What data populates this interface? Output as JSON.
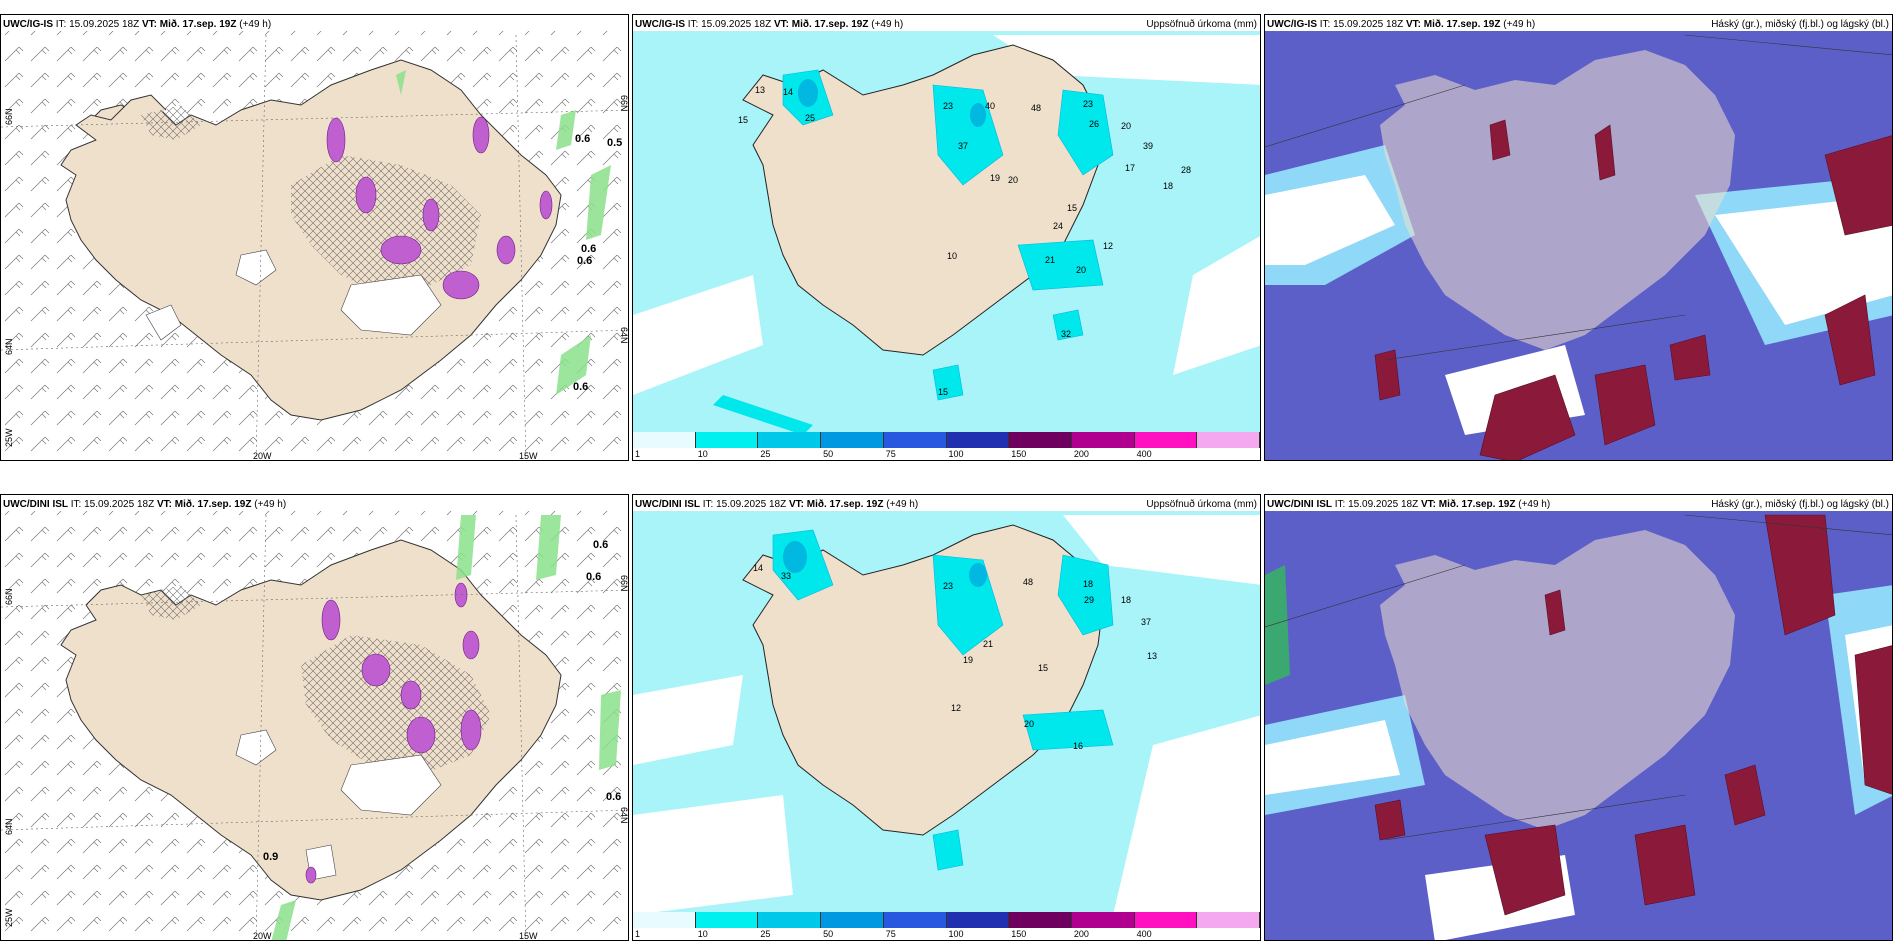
{
  "rows": [
    {
      "model": "UWC/IG-IS",
      "it": "IT: 15.09.2025 18Z",
      "vt_label": "VT:",
      "vt": "Mið. 17.sep. 19Z",
      "lead": "(+49 h)"
    },
    {
      "model": "UWC/DINI ISL",
      "it": "IT: 15.09.2025 18Z",
      "vt_label": "VT:",
      "vt": "Mið. 17.sep. 19Z",
      "lead": "(+49 h)"
    }
  ],
  "precip_title": "Uppsöfnuð úrkoma (mm)",
  "cloud_title": "Háský (gr.), miðský (fj.bl.) og lágský (bl.)",
  "lat_labels": {
    "n66": "66N",
    "n64": "64N"
  },
  "lon_labels": {
    "w20": "20W",
    "w15": "15W",
    "w25": "25W"
  },
  "wind_values_top": [
    "0.6",
    "0.5",
    "0.6",
    "0.6",
    "0.6"
  ],
  "wind_values_bottom": [
    "0.6",
    "0.6",
    "0.6",
    "0.9"
  ],
  "precip_colorbar": {
    "colors": [
      "#e8fbff",
      "#00f0f0",
      "#00c8e8",
      "#0098e0",
      "#2858e0",
      "#2030b0",
      "#700060",
      "#b00090",
      "#ff10c0",
      "#f4a8f0"
    ],
    "ticks": [
      "1",
      "10",
      "25",
      "50",
      "75",
      "100",
      "150",
      "200",
      "400"
    ]
  },
  "precip_numbers_top": [
    "14",
    "25",
    "13",
    "15",
    "23",
    "40",
    "48",
    "26",
    "20",
    "39",
    "28",
    "37",
    "19",
    "20",
    "17",
    "18",
    "15",
    "24",
    "21",
    "20",
    "10",
    "12",
    "32",
    "15"
  ],
  "precip_numbers_bottom": [
    "14",
    "33",
    "23",
    "29",
    "18",
    "37",
    "20",
    "48",
    "18",
    "16",
    "12",
    "13",
    "19",
    "21",
    "15"
  ],
  "colors": {
    "land": "#efe0cc",
    "sea": "#ffffff",
    "precip_light": "#a8f4f8",
    "precip_mid": "#00e8ec",
    "precip_heavy": "#00b8e0",
    "cloud_low": "#5d5fc8",
    "cloud_low_edge": "#8fd8f8",
    "cloud_high": "#8b1a3a",
    "snow": "#c060d0",
    "wind_green": "#8be08b"
  }
}
